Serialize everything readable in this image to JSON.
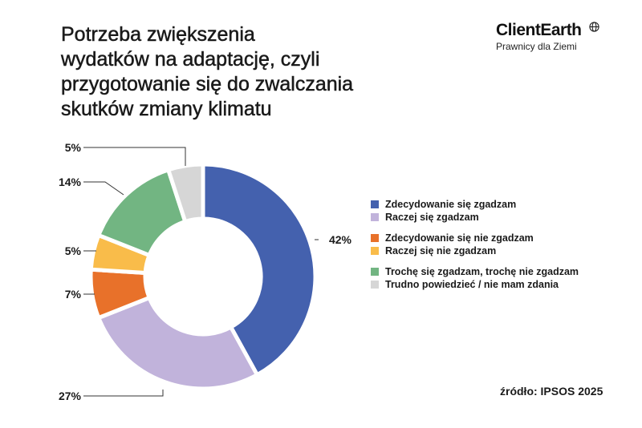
{
  "title_lines": [
    "Potrzeba zwiększenia",
    "wydatków na adaptację, czyli",
    "przygotowanie się do zwalczania",
    "skutków zmiany klimatu"
  ],
  "logo": {
    "name": "ClientEarth",
    "tagline": "Prawnicy dla Ziemi",
    "icon": "globe-icon"
  },
  "source": "źródło: IPSOS 2025",
  "chart_data": {
    "type": "donut",
    "title": "Potrzeba zwiększenia wydatków na adaptację, czyli przygotowanie się do zwalczania skutków zmiany klimatu",
    "unit": "%",
    "legend_position": "right",
    "slices": [
      {
        "name": "Zdecydowanie się zgadzam",
        "value": 42,
        "label": "42%",
        "color": "#4461AE"
      },
      {
        "name": "Raczej się zgadzam",
        "value": 27,
        "label": "27%",
        "color": "#C1B3DB"
      },
      {
        "name": "Zdecydowanie się nie zgadzam",
        "value": 7,
        "label": "7%",
        "color": "#E8712A"
      },
      {
        "name": "Raczej się nie zgadzam",
        "value": 5,
        "label": "5%",
        "color": "#F9BC4A"
      },
      {
        "name": "Trochę się zgadzam, trochę nie zgadzam",
        "value": 14,
        "label": "14%",
        "color": "#72B582"
      },
      {
        "name": "Trudno powiedzieć / nie mam zdania",
        "value": 5,
        "label": "5%",
        "color": "#D6D6D6"
      }
    ]
  }
}
